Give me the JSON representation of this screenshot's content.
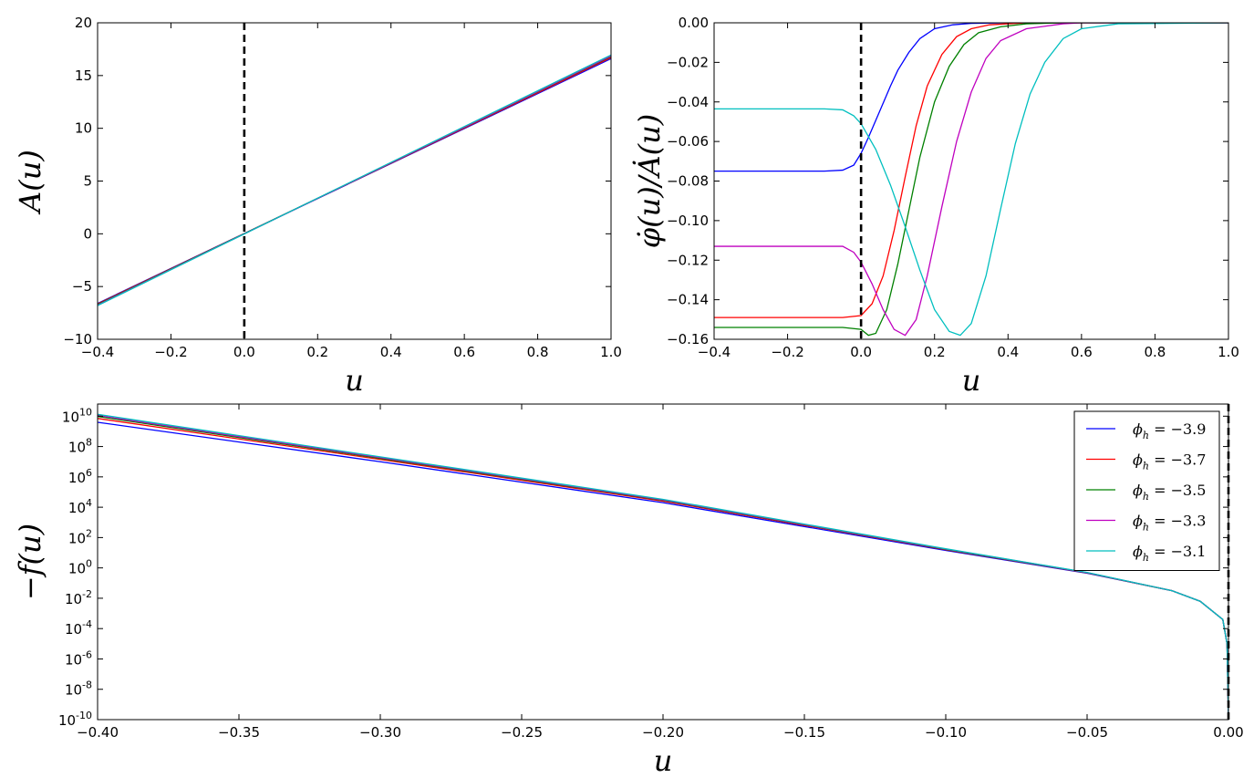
{
  "chart_data": [
    {
      "type": "line",
      "panel": "top-left",
      "xlabel": "u",
      "ylabel": "A(u)",
      "xlim": [
        -0.4,
        1.0
      ],
      "ylim": [
        -10,
        20
      ],
      "xticks": [
        "−0.4",
        "−0.2",
        "0.0",
        "0.2",
        "0.4",
        "0.6",
        "0.8",
        "1.0"
      ],
      "yticks": [
        "−10",
        "−5",
        "0",
        "5",
        "10",
        "15",
        "20"
      ],
      "vline": {
        "x": 0,
        "style": "dashed"
      },
      "series": [
        {
          "color": "#0000ff",
          "x": [
            -0.4,
            1.0
          ],
          "y": [
            -6.6,
            16.6
          ]
        },
        {
          "color": "#ff0000",
          "x": [
            -0.4,
            1.0
          ],
          "y": [
            -6.65,
            16.7
          ]
        },
        {
          "color": "#008000",
          "x": [
            -0.4,
            1.0
          ],
          "y": [
            -6.7,
            16.8
          ]
        },
        {
          "color": "#bf00bf",
          "x": [
            -0.4,
            1.0
          ],
          "y": [
            -6.75,
            16.85
          ]
        },
        {
          "color": "#00bfbf",
          "x": [
            -0.4,
            1.0
          ],
          "y": [
            -6.8,
            16.95
          ]
        }
      ]
    },
    {
      "type": "line",
      "panel": "top-right",
      "xlabel": "u",
      "ylabel": "φ̇(u)/Ȧ(u)",
      "xlim": [
        -0.4,
        1.0
      ],
      "ylim": [
        -0.16,
        0.0
      ],
      "xticks": [
        "−0.4",
        "−0.2",
        "0.0",
        "0.2",
        "0.4",
        "0.6",
        "0.8",
        "1.0"
      ],
      "yticks": [
        "−0.16",
        "−0.14",
        "−0.12",
        "−0.10",
        "−0.08",
        "−0.06",
        "−0.04",
        "−0.02",
        "0.00"
      ],
      "vline": {
        "x": 0,
        "style": "dashed"
      },
      "series": [
        {
          "color": "#0000ff",
          "x": [
            -0.4,
            -0.1,
            -0.05,
            -0.02,
            0.0,
            0.02,
            0.05,
            0.08,
            0.1,
            0.13,
            0.16,
            0.2,
            0.25,
            0.3,
            0.4,
            1.0
          ],
          "y": [
            -0.075,
            -0.075,
            -0.0745,
            -0.072,
            -0.066,
            -0.058,
            -0.045,
            -0.032,
            -0.024,
            -0.015,
            -0.008,
            -0.003,
            -0.001,
            -0.0003,
            0.0,
            0.0
          ]
        },
        {
          "color": "#ff0000",
          "x": [
            -0.4,
            -0.05,
            0.0,
            0.03,
            0.06,
            0.09,
            0.12,
            0.15,
            0.18,
            0.22,
            0.26,
            0.3,
            0.35,
            0.45,
            1.0
          ],
          "y": [
            -0.149,
            -0.149,
            -0.148,
            -0.142,
            -0.128,
            -0.105,
            -0.078,
            -0.052,
            -0.032,
            -0.016,
            -0.007,
            -0.003,
            -0.001,
            0.0,
            0.0
          ]
        },
        {
          "color": "#008000",
          "x": [
            -0.4,
            -0.05,
            0.0,
            0.02,
            0.04,
            0.07,
            0.1,
            0.13,
            0.16,
            0.2,
            0.24,
            0.28,
            0.32,
            0.38,
            0.45,
            0.55,
            1.0
          ],
          "y": [
            -0.154,
            -0.154,
            -0.155,
            -0.158,
            -0.157,
            -0.145,
            -0.122,
            -0.095,
            -0.068,
            -0.04,
            -0.022,
            -0.011,
            -0.005,
            -0.002,
            -0.0005,
            0.0,
            0.0
          ]
        },
        {
          "color": "#bf00bf",
          "x": [
            -0.4,
            -0.05,
            -0.02,
            0.0,
            0.03,
            0.06,
            0.09,
            0.12,
            0.15,
            0.18,
            0.22,
            0.26,
            0.3,
            0.34,
            0.38,
            0.45,
            0.55,
            0.6,
            1.0
          ],
          "y": [
            -0.113,
            -0.113,
            -0.116,
            -0.121,
            -0.132,
            -0.145,
            -0.155,
            -0.158,
            -0.15,
            -0.128,
            -0.093,
            -0.06,
            -0.035,
            -0.018,
            -0.009,
            -0.003,
            -0.0005,
            0.0,
            0.0
          ]
        },
        {
          "color": "#00bfbf",
          "x": [
            -0.4,
            -0.1,
            -0.05,
            -0.02,
            0.0,
            0.04,
            0.08,
            0.12,
            0.16,
            0.2,
            0.24,
            0.27,
            0.3,
            0.34,
            0.38,
            0.42,
            0.46,
            0.5,
            0.55,
            0.6,
            0.7,
            1.0
          ],
          "y": [
            -0.0435,
            -0.0435,
            -0.044,
            -0.047,
            -0.051,
            -0.064,
            -0.082,
            -0.103,
            -0.125,
            -0.145,
            -0.156,
            -0.158,
            -0.152,
            -0.128,
            -0.094,
            -0.061,
            -0.036,
            -0.02,
            -0.008,
            -0.003,
            -0.0005,
            0.0
          ]
        }
      ]
    },
    {
      "type": "line",
      "panel": "bottom",
      "xlabel": "u",
      "ylabel": "−f(u)",
      "yscale": "log",
      "xlim": [
        -0.4,
        0.0
      ],
      "ylim_exp": [
        -10,
        10.8
      ],
      "xticks": [
        "−0.40",
        "−0.35",
        "−0.30",
        "−0.25",
        "−0.20",
        "−0.15",
        "−0.10",
        "−0.05",
        "0.00"
      ],
      "yticks": [
        {
          "base": "10",
          "exp": "10"
        },
        {
          "base": "10",
          "exp": "8"
        },
        {
          "base": "10",
          "exp": "6"
        },
        {
          "base": "10",
          "exp": "4"
        },
        {
          "base": "10",
          "exp": "2"
        },
        {
          "base": "10",
          "exp": "0"
        },
        {
          "base": "10",
          "exp": "-2"
        },
        {
          "base": "10",
          "exp": "-4"
        },
        {
          "base": "10",
          "exp": "-6"
        },
        {
          "base": "10",
          "exp": "-8"
        },
        {
          "base": "10",
          "exp": "-10"
        }
      ],
      "vline": {
        "x": 0,
        "style": "dashed"
      },
      "legend": {
        "position": "top-right",
        "entries": [
          {
            "label": "ϕh = −3.9",
            "sym": "ϕ",
            "sub": "h",
            "rest": " = −3.9",
            "color": "#0000ff"
          },
          {
            "label": "ϕh = −3.7",
            "sym": "ϕ",
            "sub": "h",
            "rest": " = −3.7",
            "color": "#ff0000"
          },
          {
            "label": "ϕh = −3.5",
            "sym": "ϕ",
            "sub": "h",
            "rest": " = −3.5",
            "color": "#008000"
          },
          {
            "label": "ϕh = −3.3",
            "sym": "ϕ",
            "sub": "h",
            "rest": " = −3.3",
            "color": "#bf00bf"
          },
          {
            "label": "ϕh = −3.1",
            "sym": "ϕ",
            "sub": "h",
            "rest": " = −3.1",
            "color": "#00bfbf"
          }
        ]
      },
      "series": [
        {
          "color": "#0000ff",
          "x": [
            -0.4,
            -0.3,
            -0.2,
            -0.1,
            -0.05,
            -0.02,
            -0.01,
            -0.002,
            -0.0005,
            0.0
          ],
          "y_log10": [
            9.6,
            7.0,
            4.3,
            1.15,
            -0.35,
            -1.5,
            -2.2,
            -3.4,
            -5.0,
            -10.0
          ]
        },
        {
          "color": "#ff0000",
          "x": [
            -0.4,
            -0.3,
            -0.2,
            -0.1,
            -0.05,
            -0.02,
            -0.01,
            -0.002,
            -0.0005,
            0.0
          ],
          "y_log10": [
            9.85,
            7.15,
            4.4,
            1.2,
            -0.33,
            -1.5,
            -2.2,
            -3.4,
            -5.0,
            -10.0
          ]
        },
        {
          "color": "#008000",
          "x": [
            -0.4,
            -0.3,
            -0.2,
            -0.1,
            -0.05,
            -0.02,
            -0.01,
            -0.002,
            -0.0005,
            0.0
          ],
          "y_log10": [
            9.98,
            7.22,
            4.45,
            1.22,
            -0.32,
            -1.5,
            -2.2,
            -3.4,
            -5.0,
            -10.0
          ]
        },
        {
          "color": "#bf00bf",
          "x": [
            -0.4,
            -0.3,
            -0.2,
            -0.1,
            -0.05,
            -0.02,
            -0.01,
            -0.002,
            -0.0005,
            0.0
          ],
          "y_log10": [
            10.05,
            7.27,
            4.48,
            1.24,
            -0.31,
            -1.5,
            -2.2,
            -3.4,
            -5.0,
            -10.0
          ]
        },
        {
          "color": "#00bfbf",
          "x": [
            -0.4,
            -0.3,
            -0.2,
            -0.1,
            -0.05,
            -0.02,
            -0.01,
            -0.002,
            -0.0005,
            0.0
          ],
          "y_log10": [
            10.12,
            7.32,
            4.52,
            1.26,
            -0.3,
            -1.5,
            -2.2,
            -3.4,
            -5.0,
            -10.0
          ]
        }
      ]
    }
  ]
}
